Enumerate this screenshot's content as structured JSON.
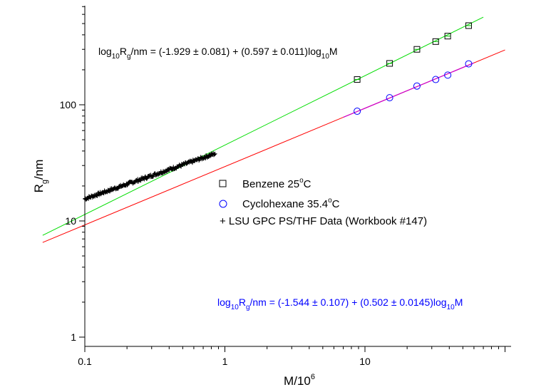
{
  "chart_data": {
    "type": "scatter",
    "title": "",
    "x_scale": "log",
    "y_scale": "log",
    "xlim": [
      0.1,
      100
    ],
    "ylim": [
      1,
      1000
    ],
    "xlabel": {
      "main": "M/10",
      "sup": "6"
    },
    "ylabel": {
      "main": "R",
      "sub": "g",
      "rest": "/nm"
    },
    "x_ticks": [
      {
        "value": 0.1,
        "label": "0.1"
      },
      {
        "value": 1,
        "label": "1"
      },
      {
        "value": 10,
        "label": "10"
      }
    ],
    "y_ticks": [
      {
        "value": 1,
        "label": "1"
      },
      {
        "value": 10,
        "label": "10"
      },
      {
        "value": 100,
        "label": "100"
      }
    ],
    "grid": false,
    "legend_position": "center",
    "series": [
      {
        "name": "Benzene 25°C",
        "legend": {
          "main": "Benzene 25",
          "sup": "o",
          "rest": "C"
        },
        "marker": "square",
        "color": "#000000",
        "x": [
          8.8,
          15.0,
          23.5,
          32.0,
          39.0,
          55.0
        ],
        "y": [
          165,
          227,
          300,
          350,
          390,
          480
        ]
      },
      {
        "name": "Cyclohexane 35.4°C",
        "legend": {
          "main": "Cyclohexane 35.4",
          "sup": "o",
          "rest": "C"
        },
        "marker": "circle",
        "color": "#0000ff",
        "x": [
          8.8,
          15.0,
          23.5,
          32.0,
          39.0,
          55.0
        ],
        "y": [
          88,
          115,
          145,
          165,
          180,
          225
        ]
      },
      {
        "name": "LSU GPC PS/THF Data (Workbook #147)",
        "legend": {
          "main": "+ LSU GPC PS/THF Data (Workbook #147)"
        },
        "marker": "plus",
        "color": "#000000",
        "x_range": [
          0.1,
          0.85
        ],
        "y_range": [
          15.5,
          38
        ]
      }
    ],
    "fit_lines": [
      {
        "color": "#00dd00",
        "intercept": -1.929,
        "slope": 0.597,
        "x_range": [
          0.05,
          70
        ]
      },
      {
        "color": "#ff0000",
        "intercept": -1.544,
        "slope": 0.502,
        "x_range": [
          0.05,
          100
        ]
      },
      {
        "color": "#cc00cc",
        "intercept": -1.544,
        "slope": 0.502,
        "x_range": [
          7,
          60
        ]
      }
    ],
    "annotations": [
      {
        "color": "#000000",
        "parts": [
          {
            "t": "log"
          },
          {
            "t": "10",
            "sub": true
          },
          {
            "t": "R"
          },
          {
            "t": "g",
            "sub": true
          },
          {
            "t": "/nm = (-1.929 ± 0.081) + (0.597 ± 0.011)log"
          },
          {
            "t": "10",
            "sub": true
          },
          {
            "t": "M"
          }
        ]
      },
      {
        "color": "#0000ff",
        "parts": [
          {
            "t": "log"
          },
          {
            "t": "10",
            "sub": true
          },
          {
            "t": "R"
          },
          {
            "t": "g",
            "sub": true
          },
          {
            "t": "/nm = (-1.544 ± 0.107) + (0.502 ± 0.0145)log"
          },
          {
            "t": "10",
            "sub": true
          },
          {
            "t": "M"
          }
        ]
      }
    ]
  }
}
